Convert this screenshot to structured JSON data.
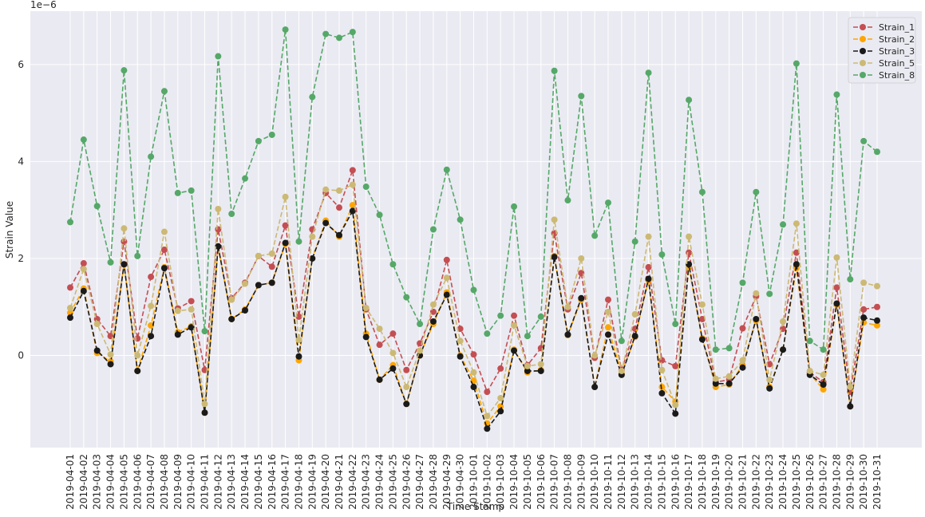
{
  "chart_data": {
    "type": "line",
    "xlabel": "Time Stamp",
    "ylabel": "Strain Value",
    "y_offset_label": "1e−6",
    "ylim": [
      -1.9,
      7.1
    ],
    "yticks": [
      0,
      2,
      4,
      6
    ],
    "grid": true,
    "legend_position": "top-right",
    "categories": [
      "2019-04-01",
      "2019-04-02",
      "2019-04-03",
      "2019-04-04",
      "2019-04-05",
      "2019-04-06",
      "2019-04-07",
      "2019-04-08",
      "2019-04-09",
      "2019-04-10",
      "2019-04-11",
      "2019-04-12",
      "2019-04-13",
      "2019-04-14",
      "2019-04-15",
      "2019-04-16",
      "2019-04-17",
      "2019-04-18",
      "2019-04-19",
      "2019-04-20",
      "2019-04-21",
      "2019-04-22",
      "2019-04-23",
      "2019-04-24",
      "2019-04-25",
      "2019-04-26",
      "2019-04-27",
      "2019-04-28",
      "2019-04-29",
      "2019-04-30",
      "2019-10-01",
      "2019-10-02",
      "2019-10-03",
      "2019-10-04",
      "2019-10-05",
      "2019-10-06",
      "2019-10-07",
      "2019-10-08",
      "2019-10-09",
      "2019-10-10",
      "2019-10-11",
      "2019-10-12",
      "2019-10-13",
      "2019-10-14",
      "2019-10-15",
      "2019-10-16",
      "2019-10-17",
      "2019-10-18",
      "2019-10-19",
      "2019-10-20",
      "2019-10-21",
      "2019-10-22",
      "2019-10-23",
      "2019-10-24",
      "2019-10-25",
      "2019-10-26",
      "2019-10-27",
      "2019-10-28",
      "2019-10-29",
      "2019-10-30",
      "2019-10-31"
    ],
    "series": [
      {
        "name": "Strain_1",
        "color": "#c44e52",
        "values": [
          1.4,
          1.9,
          0.75,
          0.4,
          2.35,
          0.35,
          1.62,
          2.18,
          0.97,
          1.12,
          -0.3,
          2.6,
          1.18,
          1.5,
          2.05,
          1.83,
          2.68,
          0.8,
          2.6,
          3.35,
          3.05,
          3.82,
          0.95,
          0.22,
          0.45,
          -0.3,
          0.25,
          0.9,
          1.97,
          0.55,
          0.02,
          -0.75,
          -0.27,
          0.82,
          -0.2,
          0.15,
          2.52,
          0.95,
          1.7,
          -0.05,
          1.15,
          -0.3,
          0.55,
          1.82,
          -0.1,
          -0.22,
          2.12,
          0.75,
          -0.55,
          -0.5,
          0.56,
          1.22,
          -0.18,
          0.55,
          2.12,
          -0.35,
          -0.55,
          1.4,
          -0.75,
          0.95,
          1.0
        ]
      },
      {
        "name": "Strain_2",
        "color": "#ffa500",
        "values": [
          0.88,
          1.38,
          0.05,
          -0.12,
          1.88,
          -0.32,
          0.62,
          1.82,
          0.48,
          0.6,
          -1.18,
          2.25,
          0.75,
          0.95,
          1.45,
          1.5,
          2.3,
          -0.1,
          2.0,
          2.78,
          2.45,
          3.1,
          0.45,
          -0.5,
          -0.2,
          -1.0,
          0.0,
          0.65,
          1.3,
          0.0,
          -0.52,
          -1.4,
          -1.05,
          0.12,
          -0.35,
          -0.3,
          2.05,
          0.42,
          1.15,
          -0.65,
          0.58,
          -0.38,
          0.38,
          1.55,
          -0.65,
          -0.95,
          1.82,
          0.35,
          -0.65,
          -0.6,
          -0.2,
          0.72,
          -0.65,
          0.12,
          1.8,
          -0.38,
          -0.7,
          1.05,
          -1.05,
          0.68,
          0.62
        ]
      },
      {
        "name": "Strain_3",
        "color": "#1a1a1a",
        "values": [
          0.78,
          1.33,
          0.1,
          -0.18,
          1.88,
          -0.32,
          0.4,
          1.8,
          0.43,
          0.58,
          -1.18,
          2.25,
          0.75,
          0.93,
          1.45,
          1.5,
          2.32,
          -0.02,
          2.0,
          2.73,
          2.48,
          2.98,
          0.38,
          -0.5,
          -0.27,
          -1.0,
          0.0,
          0.7,
          1.25,
          -0.02,
          -0.65,
          -1.51,
          -1.15,
          0.1,
          -0.32,
          -0.32,
          2.03,
          0.43,
          1.18,
          -0.65,
          0.43,
          -0.4,
          0.4,
          1.58,
          -0.78,
          -1.2,
          1.88,
          0.33,
          -0.58,
          -0.58,
          -0.25,
          0.75,
          -0.68,
          0.12,
          1.88,
          -0.4,
          -0.6,
          1.07,
          -1.05,
          0.78,
          0.72
        ]
      },
      {
        "name": "Strain_5",
        "color": "#ccb974",
        "values": [
          0.98,
          1.78,
          0.65,
          0.02,
          2.62,
          0.0,
          1.02,
          2.55,
          0.92,
          0.95,
          -1.0,
          3.02,
          1.15,
          1.48,
          2.05,
          2.1,
          3.27,
          0.32,
          2.45,
          3.42,
          3.4,
          3.52,
          0.98,
          0.55,
          0.05,
          -0.65,
          0.1,
          1.05,
          1.6,
          0.3,
          -0.35,
          -1.25,
          -0.88,
          0.62,
          -0.22,
          -0.18,
          2.8,
          1.0,
          2.0,
          0.0,
          0.9,
          -0.32,
          0.85,
          2.45,
          -0.3,
          -1.02,
          2.45,
          1.05,
          -0.48,
          -0.43,
          -0.1,
          1.28,
          -0.5,
          0.7,
          2.72,
          -0.32,
          -0.4,
          2.02,
          -0.65,
          1.5,
          1.43
        ]
      },
      {
        "name": "Strain_8",
        "color": "#55a868",
        "values": [
          2.75,
          4.45,
          3.08,
          1.92,
          5.88,
          2.05,
          4.1,
          5.45,
          3.35,
          3.4,
          0.5,
          6.17,
          2.92,
          3.65,
          4.42,
          4.55,
          6.72,
          2.35,
          5.33,
          6.63,
          6.55,
          6.67,
          3.48,
          2.9,
          1.88,
          1.2,
          0.65,
          2.6,
          3.83,
          2.8,
          1.35,
          0.45,
          0.82,
          3.07,
          0.4,
          0.8,
          5.87,
          3.2,
          5.35,
          2.47,
          3.15,
          0.3,
          2.35,
          5.83,
          2.08,
          0.65,
          5.27,
          3.37,
          0.12,
          0.15,
          1.5,
          3.37,
          1.27,
          2.7,
          6.02,
          0.3,
          0.12,
          5.38,
          1.57,
          4.42,
          4.2
        ]
      }
    ]
  }
}
